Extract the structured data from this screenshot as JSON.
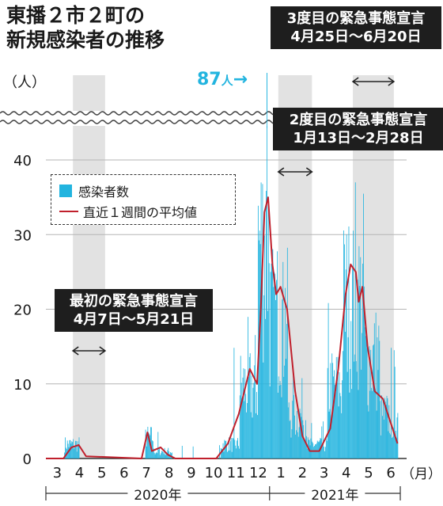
{
  "title_lines": [
    "東播２市２町の",
    "新規感染者の推移"
  ],
  "unit_label": "（人）",
  "peak_label": {
    "value": "87",
    "unit": "人",
    "arrow": "→"
  },
  "legend": {
    "bars": "感染者数",
    "line": "直近１週間の平均値"
  },
  "callouts": [
    {
      "lines": [
        "最初の緊急事態宣言",
        "4月7日～5月21日"
      ]
    },
    {
      "lines": [
        "2度目の緊急事態宣言",
        "1月13日～2月28日"
      ]
    },
    {
      "lines": [
        "3度目の緊急事態宣言",
        "4月25日～6月20日"
      ]
    }
  ],
  "chart_data": {
    "type": "bar",
    "bar_color": "#22b4df",
    "line_color": "#c0202c",
    "band_color": "#e2e2e2",
    "ylim": [
      0,
      40
    ],
    "y_ticks": [
      "0",
      "10",
      "20",
      "30",
      "40"
    ],
    "axis_break": true,
    "grid": true,
    "month_labels": [
      "3",
      "4",
      "5",
      "6",
      "7",
      "8",
      "9",
      "10",
      "11",
      "12",
      "1",
      "2",
      "3",
      "4",
      "5",
      "6"
    ],
    "month_suffix": "（月）",
    "year_labels": [
      "2020年",
      "2021年"
    ],
    "emergency_periods": [
      {
        "start": "2020-04-07",
        "end": "2020-05-21"
      },
      {
        "start": "2021-01-13",
        "end": "2021-02-28"
      },
      {
        "start": "2021-04-25",
        "end": "2021-06-20"
      }
    ],
    "peak": {
      "date": "2020-12-28",
      "value": 87
    },
    "daily_cases": {
      "unit": "approximate daily new cases by period",
      "segments": [
        {
          "from": "2020-03-01",
          "to": "2020-03-25",
          "typical": 0
        },
        {
          "from": "2020-03-26",
          "to": "2020-04-15",
          "typical": 2,
          "max": 5
        },
        {
          "from": "2020-04-16",
          "to": "2020-07-14",
          "typical": 0
        },
        {
          "from": "2020-07-15",
          "to": "2020-07-25",
          "typical": 3,
          "max": 6
        },
        {
          "from": "2020-07-26",
          "to": "2020-08-20",
          "typical": 1,
          "max": 4
        },
        {
          "from": "2020-08-21",
          "to": "2020-10-25",
          "typical": 0,
          "max": 2
        },
        {
          "from": "2020-10-26",
          "to": "2020-11-20",
          "typical": 2,
          "max": 15
        },
        {
          "from": "2020-11-21",
          "to": "2020-12-15",
          "typical": 10,
          "max": 19
        },
        {
          "from": "2020-12-16",
          "to": "2020-12-31",
          "typical": 30,
          "max": 87
        },
        {
          "from": "2021-01-01",
          "to": "2021-01-25",
          "typical": 20,
          "max": 33
        },
        {
          "from": "2021-01-26",
          "to": "2021-02-20",
          "typical": 6,
          "max": 14
        },
        {
          "from": "2021-02-21",
          "to": "2021-03-20",
          "typical": 2,
          "max": 5
        },
        {
          "from": "2021-03-21",
          "to": "2021-04-10",
          "typical": 10,
          "max": 22
        },
        {
          "from": "2021-04-11",
          "to": "2021-05-10",
          "typical": 22,
          "max": 40
        },
        {
          "from": "2021-05-11",
          "to": "2021-05-31",
          "typical": 14,
          "max": 30
        },
        {
          "from": "2021-06-01",
          "to": "2021-06-25",
          "typical": 6,
          "max": 15
        }
      ]
    },
    "seven_day_average": {
      "x": [
        "2020-03-01",
        "2020-03-25",
        "2020-04-05",
        "2020-04-15",
        "2020-04-25",
        "2020-07-10",
        "2020-07-18",
        "2020-07-24",
        "2020-08-05",
        "2020-08-15",
        "2020-08-25",
        "2020-10-20",
        "2020-11-05",
        "2020-11-20",
        "2020-12-05",
        "2020-12-15",
        "2020-12-20",
        "2020-12-25",
        "2020-12-30",
        "2021-01-05",
        "2021-01-10",
        "2021-01-16",
        "2021-01-25",
        "2021-02-05",
        "2021-02-15",
        "2021-02-25",
        "2021-03-10",
        "2021-03-25",
        "2021-04-05",
        "2021-04-15",
        "2021-04-22",
        "2021-04-29",
        "2021-05-03",
        "2021-05-08",
        "2021-05-15",
        "2021-05-25",
        "2021-06-05",
        "2021-06-15",
        "2021-06-25"
      ],
      "y": [
        0,
        0,
        1.5,
        1.8,
        0.3,
        0,
        3.5,
        1,
        1.5,
        0.5,
        0,
        0,
        2,
        6,
        12,
        10,
        20,
        33,
        35,
        26,
        22,
        23,
        20,
        9,
        3,
        1,
        1,
        4,
        12,
        22,
        26,
        25,
        21,
        23,
        15,
        9,
        8,
        5,
        2
      ]
    }
  }
}
